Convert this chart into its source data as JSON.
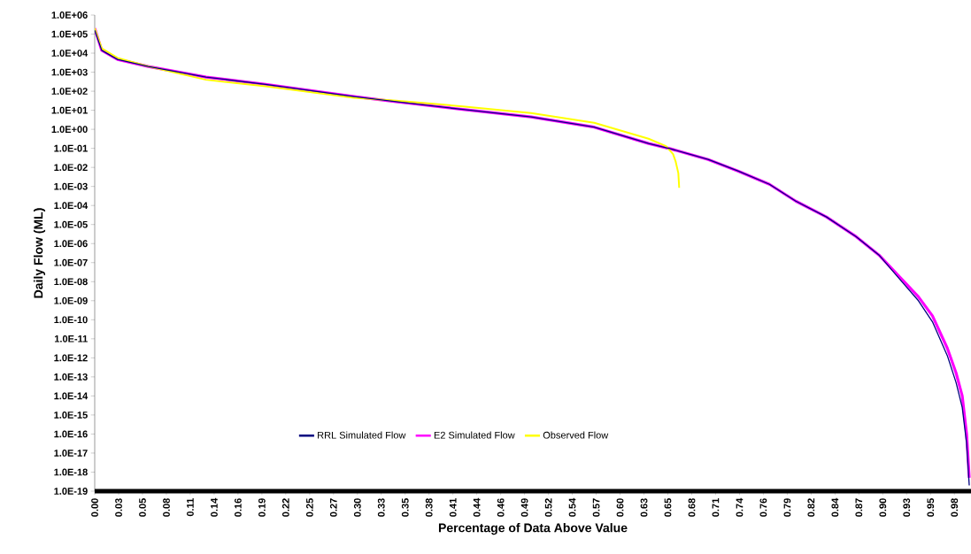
{
  "chart_data": {
    "type": "line",
    "xlabel": "Percentage of Data Above Value",
    "ylabel": "Daily Flow (ML)",
    "log": "y",
    "legend": "bottom",
    "grid": false,
    "marker": "none",
    "line_style": "solid",
    "xlim": [
      0,
      1
    ],
    "ylim": [
      1e-19,
      1000000.0
    ],
    "xticks": [
      {
        "value": 0,
        "label": "0.00"
      },
      {
        "value": 0.0273,
        "label": "0.03"
      },
      {
        "value": 0.0545,
        "label": "0.05"
      },
      {
        "value": 0.0818,
        "label": "0.08"
      },
      {
        "value": 0.109,
        "label": "0.11"
      },
      {
        "value": 0.1363,
        "label": "0.14"
      },
      {
        "value": 0.1635,
        "label": "0.16"
      },
      {
        "value": 0.1908,
        "label": "0.19"
      },
      {
        "value": 0.218,
        "label": "0.22"
      },
      {
        "value": 0.2453,
        "label": "0.25"
      },
      {
        "value": 0.2725,
        "label": "0.27"
      },
      {
        "value": 0.2998,
        "label": "0.30"
      },
      {
        "value": 0.327,
        "label": "0.33"
      },
      {
        "value": 0.3543,
        "label": "0.35"
      },
      {
        "value": 0.3815,
        "label": "0.38"
      },
      {
        "value": 0.4088,
        "label": "0.41"
      },
      {
        "value": 0.436,
        "label": "0.44"
      },
      {
        "value": 0.4633,
        "label": "0.46"
      },
      {
        "value": 0.4905,
        "label": "0.49"
      },
      {
        "value": 0.5178,
        "label": "0.52"
      },
      {
        "value": 0.545,
        "label": "0.54"
      },
      {
        "value": 0.5723,
        "label": "0.57"
      },
      {
        "value": 0.5995,
        "label": "0.60"
      },
      {
        "value": 0.6268,
        "label": "0.63"
      },
      {
        "value": 0.654,
        "label": "0.65"
      },
      {
        "value": 0.6813,
        "label": "0.68"
      },
      {
        "value": 0.7085,
        "label": "0.71"
      },
      {
        "value": 0.7358,
        "label": "0.74"
      },
      {
        "value": 0.763,
        "label": "0.76"
      },
      {
        "value": 0.7903,
        "label": "0.79"
      },
      {
        "value": 0.8175,
        "label": "0.82"
      },
      {
        "value": 0.8448,
        "label": "0.84"
      },
      {
        "value": 0.872,
        "label": "0.87"
      },
      {
        "value": 0.8993,
        "label": "0.90"
      },
      {
        "value": 0.9265,
        "label": "0.93"
      },
      {
        "value": 0.9538,
        "label": "0.95"
      },
      {
        "value": 0.981,
        "label": "0.98"
      }
    ],
    "yticks": [
      {
        "value": 1000000.0,
        "label": "1.0E+06"
      },
      {
        "value": 100000.0,
        "label": "1.0E+05"
      },
      {
        "value": 10000.0,
        "label": "1.0E+04"
      },
      {
        "value": 1000.0,
        "label": "1.0E+03"
      },
      {
        "value": 100.0,
        "label": "1.0E+02"
      },
      {
        "value": 10.0,
        "label": "1.0E+01"
      },
      {
        "value": 1,
        "label": "1.0E+00"
      },
      {
        "value": 0.1,
        "label": "1.0E-01"
      },
      {
        "value": 0.01,
        "label": "1.0E-02"
      },
      {
        "value": 0.001,
        "label": "1.0E-03"
      },
      {
        "value": 0.0001,
        "label": "1.0E-04"
      },
      {
        "value": 1e-05,
        "label": "1.0E-05"
      },
      {
        "value": 1e-06,
        "label": "1.0E-06"
      },
      {
        "value": 1e-07,
        "label": "1.0E-07"
      },
      {
        "value": 1e-08,
        "label": "1.0E-08"
      },
      {
        "value": 1e-09,
        "label": "1.0E-09"
      },
      {
        "value": 1e-10,
        "label": "1.0E-10"
      },
      {
        "value": 1e-11,
        "label": "1.0E-11"
      },
      {
        "value": 1e-12,
        "label": "1.0E-12"
      },
      {
        "value": 1e-13,
        "label": "1.0E-13"
      },
      {
        "value": 1e-14,
        "label": "1.0E-14"
      },
      {
        "value": 1e-15,
        "label": "1.0E-15"
      },
      {
        "value": 1e-16,
        "label": "1.0E-16"
      },
      {
        "value": 1e-17,
        "label": "1.0E-17"
      },
      {
        "value": 1e-18,
        "label": "1.0E-18"
      },
      {
        "value": 1e-19,
        "label": "1.0E-19"
      }
    ],
    "series": [
      {
        "name": "RRL Simulated Flow",
        "color": "#000080",
        "x": [
          0,
          0.008,
          0.026,
          0.061,
          0.127,
          0.195,
          0.296,
          0.344,
          0.42,
          0.498,
          0.57,
          0.632,
          0.657,
          0.7,
          0.734,
          0.77,
          0.8,
          0.835,
          0.869,
          0.895,
          0.919,
          0.94,
          0.956,
          0.973,
          0.983,
          0.99,
          0.995,
          0.998
        ],
        "values": [
          160000.0,
          14000.0,
          4700.0,
          2000.0,
          550.0,
          230.0,
          52,
          28,
          11,
          4.5,
          1.3,
          0.18,
          0.095,
          0.026,
          0.0065,
          0.0013,
          0.00017,
          2.5e-05,
          2.3e-06,
          2.5e-07,
          1.3e-08,
          1e-09,
          7.9e-11,
          1.3e-12,
          5e-14,
          2.5e-15,
          3.2e-17,
          2e-19
        ]
      },
      {
        "name": "E2 Simulated Flow",
        "color": "#ff00ff",
        "x": [
          0,
          0.008,
          0.026,
          0.061,
          0.127,
          0.195,
          0.296,
          0.344,
          0.42,
          0.498,
          0.57,
          0.632,
          0.657,
          0.7,
          0.734,
          0.77,
          0.8,
          0.835,
          0.869,
          0.895,
          0.919,
          0.94,
          0.956,
          0.973,
          0.983,
          0.99,
          0.995,
          0.998
        ],
        "values": [
          200000.0,
          14000.0,
          4700.0,
          2000.0,
          550.0,
          230.0,
          52,
          28,
          11,
          4.5,
          1.3,
          0.18,
          0.095,
          0.026,
          0.0065,
          0.0013,
          0.00017,
          2.5e-05,
          2.3e-06,
          2.5e-07,
          1.7e-08,
          1.6e-09,
          1.6e-10,
          3.2e-12,
          1.6e-13,
          1e-14,
          1e-16,
          5e-19
        ]
      },
      {
        "name": "Observed Flow",
        "color": "#ffff00",
        "x": [
          0,
          0.008,
          0.026,
          0.061,
          0.127,
          0.195,
          0.296,
          0.344,
          0.42,
          0.498,
          0.57,
          0.632,
          0.652,
          0.66,
          0.663,
          0.666,
          0.667
        ],
        "values": [
          200000.0,
          18000.0,
          5600.0,
          2000.0,
          400.0,
          180.0,
          45,
          32,
          16,
          7.1,
          2.2,
          0.32,
          0.13,
          0.05,
          0.02,
          0.005,
          0.00085
        ]
      }
    ]
  }
}
